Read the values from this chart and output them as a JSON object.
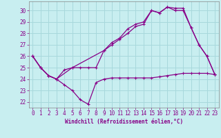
{
  "xlabel": "Windchill (Refroidissement éolien,°C)",
  "background_color": "#c8eef0",
  "grid_color": "#a8d8dc",
  "line_color": "#880088",
  "ylim": [
    21.5,
    30.8
  ],
  "xlim": [
    -0.5,
    23.5
  ],
  "yticks": [
    22,
    23,
    24,
    25,
    26,
    27,
    28,
    29,
    30
  ],
  "xticks": [
    0,
    1,
    2,
    3,
    4,
    5,
    6,
    7,
    8,
    9,
    10,
    11,
    12,
    13,
    14,
    15,
    16,
    17,
    18,
    19,
    20,
    21,
    22,
    23
  ],
  "line1_x": [
    0,
    1,
    2,
    3,
    4,
    5,
    6,
    7,
    8,
    9,
    10,
    11,
    12,
    13,
    14,
    15,
    16,
    17,
    18,
    19,
    20,
    21,
    22,
    23
  ],
  "line1_y": [
    26.0,
    25.0,
    24.3,
    24.0,
    23.5,
    23.0,
    22.2,
    21.8,
    23.7,
    24.0,
    24.1,
    24.1,
    24.1,
    24.1,
    24.1,
    24.1,
    24.2,
    24.3,
    24.4,
    24.5,
    24.5,
    24.5,
    24.5,
    24.4
  ],
  "line2_x": [
    0,
    1,
    2,
    3,
    4,
    5,
    6,
    7,
    8,
    9,
    10,
    11,
    12,
    13,
    14,
    15,
    16,
    17,
    18,
    19,
    20,
    21,
    22,
    23
  ],
  "line2_y": [
    26.0,
    25.0,
    24.3,
    24.0,
    24.8,
    25.0,
    25.0,
    25.0,
    25.0,
    26.5,
    27.2,
    27.6,
    28.4,
    28.8,
    29.0,
    30.0,
    29.8,
    30.3,
    30.2,
    30.2,
    28.5,
    27.0,
    26.0,
    24.4
  ],
  "line3_x": [
    0,
    1,
    2,
    3,
    5,
    9,
    10,
    11,
    12,
    13,
    14,
    15,
    16,
    17,
    18,
    19,
    20,
    21,
    22,
    23
  ],
  "line3_y": [
    26.0,
    25.0,
    24.3,
    24.0,
    25.0,
    26.5,
    27.0,
    27.5,
    28.0,
    28.6,
    28.8,
    30.0,
    29.8,
    30.3,
    30.0,
    30.0,
    28.5,
    27.0,
    26.0,
    24.4
  ]
}
